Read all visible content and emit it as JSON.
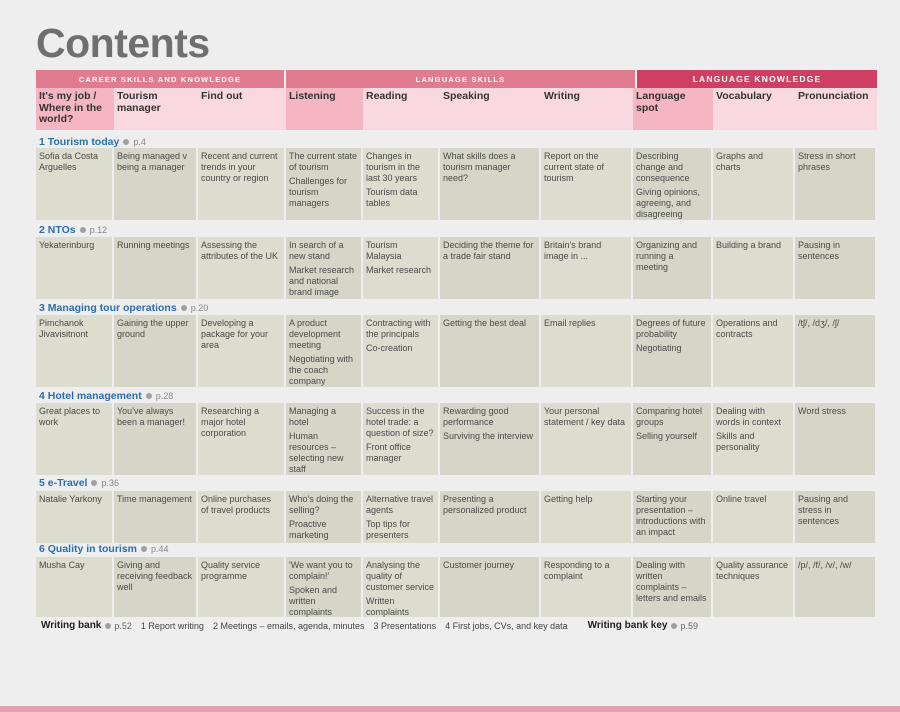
{
  "title": "Contents",
  "bands": {
    "career": "CAREER SKILLS AND KNOWLEDGE",
    "language_skills": "LANGUAGE SKILLS",
    "language_knowledge": "LANGUAGE KNOWLEDGE"
  },
  "headers": [
    "It's my job / Where in the world?",
    "Tourism manager",
    "Find out",
    "Listening",
    "Reading",
    "Speaking",
    "Writing",
    "Language spot",
    "Vocabulary",
    "Pronunciation"
  ],
  "units": [
    {
      "title": "1 Tourism today",
      "page": "p.4",
      "cells": [
        [
          "Sofia da Costa Arguelles"
        ],
        [
          "Being managed v being a manager"
        ],
        [
          "Recent and current trends in your country or region"
        ],
        [
          "The current state of tourism",
          "Challenges for tourism managers"
        ],
        [
          "Changes in tourism in the last 30 years",
          "Tourism data tables"
        ],
        [
          "What skills does a tourism manager need?"
        ],
        [
          "Report on the current state of tourism"
        ],
        [
          "Describing change and consequence",
          "Giving opinions, agreeing, and disagreeing"
        ],
        [
          "Graphs and charts"
        ],
        [
          "Stress in short phrases"
        ]
      ]
    },
    {
      "title": "2 NTOs",
      "page": "p.12",
      "cells": [
        [
          "Yekaterinburg"
        ],
        [
          "Running meetings"
        ],
        [
          "Assessing the attributes of the UK"
        ],
        [
          "In search of a new stand",
          "Market research and national brand image"
        ],
        [
          "Tourism Malaysia",
          "Market research"
        ],
        [
          "Deciding the theme for a trade fair stand"
        ],
        [
          "Britain's brand image in ..."
        ],
        [
          "Organizing and running a meeting"
        ],
        [
          "Building a brand"
        ],
        [
          "Pausing in sentences"
        ]
      ]
    },
    {
      "title": "3 Managing tour operations",
      "page": "p.20",
      "cells": [
        [
          "Pimchanok Jivavisitnont"
        ],
        [
          "Gaining the upper ground"
        ],
        [
          "Developing a package for your area"
        ],
        [
          "A product development meeting",
          "Negotiating with the coach company"
        ],
        [
          "Contracting with the principals",
          "Co-creation"
        ],
        [
          "Getting the best deal"
        ],
        [
          "Email replies"
        ],
        [
          "Degrees of future probability",
          "Negotiating"
        ],
        [
          "Operations and contracts"
        ],
        [
          "/tʃ/, /dʒ/, /ʃ/"
        ]
      ]
    },
    {
      "title": "4 Hotel management",
      "page": "p.28",
      "cells": [
        [
          "Great places to work"
        ],
        [
          "You've always been a manager!"
        ],
        [
          "Researching a major hotel corporation"
        ],
        [
          "Managing a hotel",
          "Human resources – selecting new staff"
        ],
        [
          "Success in the hotel trade: a question of size?",
          "Front office manager"
        ],
        [
          "Rewarding good performance",
          "Surviving the interview"
        ],
        [
          "Your personal statement / key data"
        ],
        [
          "Comparing hotel groups",
          "Selling yourself"
        ],
        [
          "Dealing with words in context",
          "Skills and personality"
        ],
        [
          "Word stress"
        ]
      ]
    },
    {
      "title": "5 e-Travel",
      "page": "p.36",
      "cells": [
        [
          "Natalie Yarkony"
        ],
        [
          "Time management"
        ],
        [
          "Online purchases of travel products"
        ],
        [
          "Who's doing the selling?",
          "Proactive marketing"
        ],
        [
          "Alternative travel agents",
          "Top tips for presenters"
        ],
        [
          "Presenting a personalized product"
        ],
        [
          "Getting help"
        ],
        [
          "Starting your presentation – introductions with an impact"
        ],
        [
          "Online travel"
        ],
        [
          "Pausing and stress in sentences"
        ]
      ]
    },
    {
      "title": "6 Quality in tourism",
      "page": "p.44",
      "cells": [
        [
          "Musha Cay"
        ],
        [
          "Giving and receiving feedback well"
        ],
        [
          "Quality service programme"
        ],
        [
          "'We want you to complain!'",
          "Spoken and written complaints"
        ],
        [
          "Analysing the quality of customer service",
          "Written complaints"
        ],
        [
          "Customer journey"
        ],
        [
          "Responding to a complaint"
        ],
        [
          "Dealing with written complaints – letters and emails"
        ],
        [
          "Quality assurance techniques"
        ],
        [
          "/p/, /f/, /v/, /w/"
        ]
      ]
    }
  ],
  "footer": {
    "writing_bank": "Writing bank",
    "writing_bank_page": "p.52",
    "items": [
      "1 Report writing",
      "2 Meetings – emails, agenda, minutes",
      "3 Presentations",
      "4 First jobs, CVs, and key data"
    ],
    "key": "Writing bank key",
    "key_page": "p.59"
  }
}
